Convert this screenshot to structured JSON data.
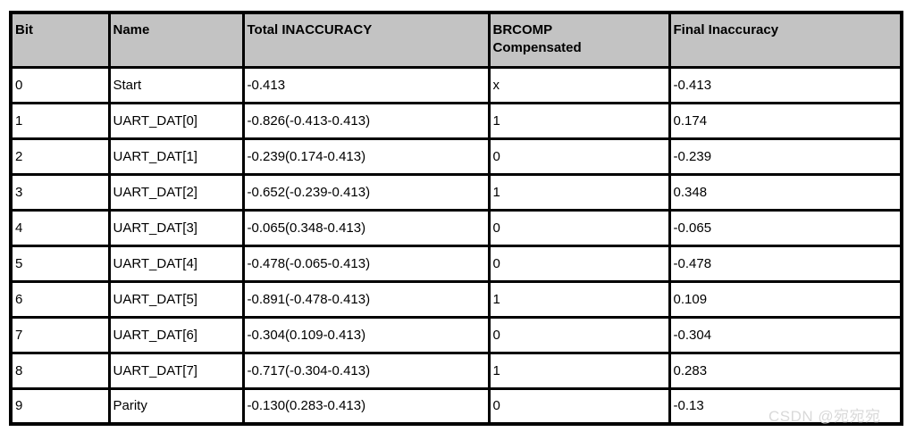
{
  "table": {
    "columns": [
      {
        "label": "Bit"
      },
      {
        "label": "Name"
      },
      {
        "label": "Total INACCURACY"
      },
      {
        "label": "BRCOMP\nCompensated"
      },
      {
        "label": "Final Inaccuracy"
      }
    ],
    "rows": [
      {
        "cells": [
          "0",
          "Start",
          "-0.413",
          "x",
          "-0.413"
        ]
      },
      {
        "cells": [
          "1",
          "UART_DAT[0]",
          "-0.826(-0.413-0.413)",
          "1",
          "0.174"
        ]
      },
      {
        "cells": [
          "2",
          "UART_DAT[1]",
          "-0.239(0.174-0.413)",
          "0",
          "-0.239"
        ]
      },
      {
        "cells": [
          "3",
          "UART_DAT[2]",
          "-0.652(-0.239-0.413)",
          "1",
          "0.348"
        ]
      },
      {
        "cells": [
          "4",
          "UART_DAT[3]",
          "-0.065(0.348-0.413)",
          "0",
          "-0.065"
        ]
      },
      {
        "cells": [
          "5",
          "UART_DAT[4]",
          "-0.478(-0.065-0.413)",
          "0",
          "-0.478"
        ]
      },
      {
        "cells": [
          "6",
          "UART_DAT[5]",
          "-0.891(-0.478-0.413)",
          "1",
          "0.109"
        ]
      },
      {
        "cells": [
          "7",
          "UART_DAT[6]",
          "-0.304(0.109-0.413)",
          "0",
          "-0.304"
        ]
      },
      {
        "cells": [
          "8",
          "UART_DAT[7]",
          "-0.717(-0.304-0.413)",
          "1",
          "0.283"
        ]
      },
      {
        "cells": [
          "9",
          "Parity",
          "-0.130(0.283-0.413)",
          "0",
          "-0.13"
        ]
      }
    ]
  },
  "watermark": {
    "text": "CSDN @宛宛宛"
  },
  "colors": {
    "header_bg": "#c3c3c3",
    "border": "#000000",
    "body_bg": "#ffffff",
    "watermark_text": "#d9d9d9"
  }
}
